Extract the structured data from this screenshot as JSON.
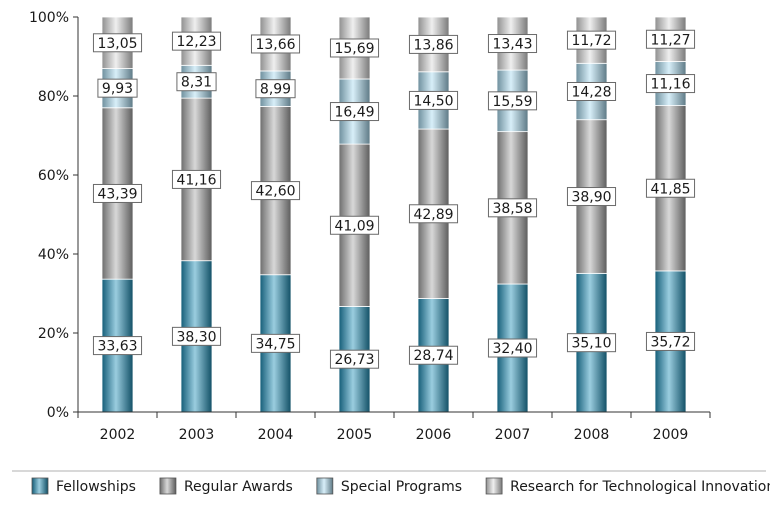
{
  "chart_data": {
    "type": "bar",
    "stacked": true,
    "percent": true,
    "categories": [
      "2002",
      "2003",
      "2004",
      "2005",
      "2006",
      "2007",
      "2008",
      "2009"
    ],
    "series": [
      {
        "name": "Fellowships",
        "color": "#1f8fb8",
        "values": [
          33.63,
          38.3,
          34.75,
          26.73,
          28.74,
          32.4,
          35.1,
          35.72
        ],
        "labels": [
          "33,63",
          "38,30",
          "34,75",
          "26,73",
          "28,74",
          "32,40",
          "35,10",
          "35,72"
        ]
      },
      {
        "name": "Regular Awards",
        "color": "#a8a8a8",
        "values": [
          43.39,
          41.16,
          42.6,
          41.09,
          42.89,
          38.58,
          38.9,
          41.85
        ],
        "labels": [
          "43,39",
          "41,16",
          "42,60",
          "41,09",
          "42,89",
          "38,58",
          "38,90",
          "41,85"
        ]
      },
      {
        "name": "Special Programs",
        "color": "#a9dcf2",
        "values": [
          9.93,
          8.31,
          8.99,
          16.49,
          14.5,
          15.59,
          14.28,
          11.16
        ],
        "labels": [
          "9,93",
          "8,31",
          "8,99",
          "16,49",
          "14,50",
          "15,59",
          "14,28",
          "11,16"
        ]
      },
      {
        "name": "Research for Technological Innovation",
        "color": "#dcdcdc",
        "values": [
          13.05,
          12.23,
          13.66,
          15.69,
          13.86,
          13.43,
          11.72,
          11.27
        ],
        "labels": [
          "13,05",
          "12,23",
          "13,66",
          "15,69",
          "13,86",
          "13,43",
          "11,72",
          "11,27"
        ]
      }
    ],
    "ylim": [
      0,
      100
    ],
    "yticks": [
      "0%",
      "20%",
      "40%",
      "60%",
      "80%",
      "100%"
    ],
    "ytick_values": [
      0,
      20,
      40,
      60,
      80,
      100
    ],
    "grid": false,
    "legend_position": "bottom"
  }
}
